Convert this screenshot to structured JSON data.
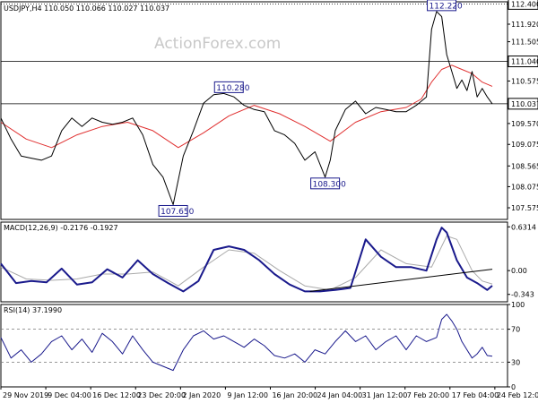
{
  "chart_data": [
    {
      "panel": "price",
      "type": "line",
      "header": "USDJPY,H4  110.050 110.066 110.027 110.037",
      "watermark": "ActionForex.com",
      "ylim": [
        107.3,
        112.45
      ],
      "ticks": [
        "112.400",
        "111.920",
        "111.505",
        "111.040",
        "110.575",
        "110.037",
        "109.570",
        "109.075",
        "108.565",
        "108.075",
        "107.575"
      ],
      "tick_values": [
        112.4,
        111.92,
        111.505,
        111.04,
        110.575,
        110.037,
        109.57,
        109.075,
        108.565,
        108.075,
        107.575
      ],
      "highlighted_levels": [
        "112.400",
        "111.040",
        "110.037"
      ],
      "annotations": [
        {
          "label": "112.220",
          "x": 0.87,
          "y": 112.22
        },
        {
          "label": "110.280",
          "x": 0.45,
          "y": 110.28
        },
        {
          "label": "108.300",
          "x": 0.64,
          "y": 108.3
        },
        {
          "label": "107.650",
          "x": 0.34,
          "y": 107.65
        }
      ],
      "series": [
        {
          "color": "#000000",
          "x": [
            0.0,
            0.02,
            0.04,
            0.06,
            0.08,
            0.1,
            0.12,
            0.14,
            0.16,
            0.18,
            0.2,
            0.22,
            0.24,
            0.26,
            0.28,
            0.3,
            0.32,
            0.34,
            0.36,
            0.38,
            0.4,
            0.42,
            0.44,
            0.46,
            0.48,
            0.5,
            0.52,
            0.54,
            0.56,
            0.58,
            0.6,
            0.62,
            0.64,
            0.65,
            0.66,
            0.68,
            0.7,
            0.72,
            0.74,
            0.76,
            0.78,
            0.8,
            0.82,
            0.84,
            0.85,
            0.86,
            0.87,
            0.88,
            0.89,
            0.9,
            0.91,
            0.92,
            0.93,
            0.94,
            0.95,
            0.96,
            0.97
          ],
          "values": [
            109.7,
            109.2,
            108.8,
            108.75,
            108.7,
            108.8,
            109.4,
            109.7,
            109.5,
            109.7,
            109.6,
            109.55,
            109.6,
            109.7,
            109.3,
            108.6,
            108.3,
            107.65,
            108.8,
            109.4,
            110.05,
            110.25,
            110.28,
            110.2,
            110.0,
            109.9,
            109.85,
            109.4,
            109.3,
            109.1,
            108.7,
            108.9,
            108.3,
            108.7,
            109.4,
            109.9,
            110.1,
            109.8,
            109.95,
            109.9,
            109.85,
            109.85,
            110.0,
            110.2,
            111.8,
            112.22,
            112.1,
            111.2,
            110.8,
            110.4,
            110.6,
            110.35,
            110.8,
            110.2,
            110.4,
            110.2,
            110.037
          ]
        },
        {
          "color": "#e03030",
          "x": [
            0.0,
            0.05,
            0.1,
            0.15,
            0.2,
            0.25,
            0.3,
            0.35,
            0.4,
            0.45,
            0.5,
            0.55,
            0.6,
            0.65,
            0.7,
            0.75,
            0.8,
            0.83,
            0.85,
            0.87,
            0.89,
            0.91,
            0.93,
            0.95,
            0.97
          ],
          "values": [
            109.6,
            109.2,
            109.0,
            109.3,
            109.5,
            109.6,
            109.4,
            109.0,
            109.35,
            109.75,
            110.0,
            109.8,
            109.5,
            109.15,
            109.6,
            109.85,
            109.95,
            110.15,
            110.55,
            110.85,
            110.95,
            110.85,
            110.75,
            110.55,
            110.45
          ]
        }
      ]
    },
    {
      "panel": "macd",
      "type": "line",
      "header": "MACD(12,26,9) -0.2176 -0.1927",
      "ylim": [
        -0.45,
        0.7
      ],
      "ticks": [
        "0.6314",
        "0.00",
        "-0.343"
      ],
      "tick_values": [
        0.6314,
        0.0,
        -0.343
      ],
      "series": [
        {
          "color": "#1a1a8c",
          "x": [
            0.0,
            0.03,
            0.06,
            0.09,
            0.12,
            0.15,
            0.18,
            0.21,
            0.24,
            0.27,
            0.3,
            0.33,
            0.36,
            0.39,
            0.42,
            0.45,
            0.48,
            0.51,
            0.54,
            0.57,
            0.6,
            0.63,
            0.66,
            0.69,
            0.72,
            0.75,
            0.78,
            0.81,
            0.84,
            0.86,
            0.87,
            0.88,
            0.9,
            0.92,
            0.94,
            0.96,
            0.97
          ],
          "values": [
            0.1,
            -0.18,
            -0.15,
            -0.17,
            0.03,
            -0.2,
            -0.17,
            0.02,
            -0.1,
            0.15,
            -0.05,
            -0.18,
            -0.3,
            -0.15,
            0.3,
            0.35,
            0.3,
            0.15,
            -0.05,
            -0.2,
            -0.3,
            -0.3,
            -0.28,
            -0.25,
            0.45,
            0.2,
            0.05,
            0.05,
            0.0,
            0.45,
            0.62,
            0.55,
            0.15,
            -0.1,
            -0.18,
            -0.28,
            -0.2176
          ]
        },
        {
          "color": "#aaaaaa",
          "x": [
            0.0,
            0.05,
            0.1,
            0.15,
            0.2,
            0.25,
            0.3,
            0.35,
            0.4,
            0.45,
            0.5,
            0.55,
            0.6,
            0.65,
            0.7,
            0.75,
            0.8,
            0.85,
            0.88,
            0.9,
            0.93,
            0.95,
            0.97
          ],
          "values": [
            0.05,
            -0.12,
            -0.14,
            -0.12,
            -0.05,
            -0.05,
            -0.02,
            -0.22,
            0.05,
            0.3,
            0.25,
            0.0,
            -0.22,
            -0.28,
            -0.1,
            0.3,
            0.1,
            0.05,
            0.5,
            0.45,
            0.0,
            -0.15,
            -0.1927
          ]
        }
      ],
      "trendline": {
        "x": [
          0.61,
          0.97
        ],
        "values": [
          -0.3,
          0.02
        ]
      }
    },
    {
      "panel": "rsi",
      "type": "line",
      "header": "RSI(14) 37.1990",
      "ylim": [
        0,
        100
      ],
      "ticks": [
        "100",
        "70",
        "30",
        "0"
      ],
      "tick_values": [
        100,
        70,
        30,
        0
      ],
      "series": [
        {
          "color": "#1a1a8c",
          "x": [
            0.0,
            0.02,
            0.04,
            0.06,
            0.08,
            0.1,
            0.12,
            0.14,
            0.16,
            0.18,
            0.2,
            0.22,
            0.24,
            0.26,
            0.28,
            0.3,
            0.32,
            0.34,
            0.36,
            0.38,
            0.4,
            0.42,
            0.44,
            0.46,
            0.48,
            0.5,
            0.52,
            0.54,
            0.56,
            0.58,
            0.6,
            0.62,
            0.64,
            0.66,
            0.68,
            0.7,
            0.72,
            0.74,
            0.76,
            0.78,
            0.8,
            0.82,
            0.84,
            0.86,
            0.87,
            0.88,
            0.89,
            0.9,
            0.91,
            0.92,
            0.93,
            0.94,
            0.95,
            0.96,
            0.97
          ],
          "values": [
            60,
            35,
            45,
            30,
            40,
            55,
            62,
            45,
            58,
            42,
            65,
            55,
            40,
            62,
            45,
            30,
            25,
            20,
            45,
            62,
            68,
            58,
            62,
            55,
            48,
            58,
            50,
            38,
            35,
            40,
            30,
            45,
            40,
            55,
            68,
            55,
            62,
            45,
            55,
            62,
            45,
            62,
            55,
            60,
            82,
            88,
            80,
            70,
            55,
            45,
            35,
            40,
            48,
            38,
            37.2
          ]
        }
      ]
    },
    {
      "panel": "x-axis",
      "type": "table",
      "labels": [
        "29 Nov 2019",
        "9 Dec 04:00",
        "16 Dec 12:00",
        "23 Dec 20:00",
        "2 Jan 2020",
        "9 Jan 12:00",
        "16 Jan 20:00",
        "24 Jan 04:00",
        "31 Jan 12:00",
        "7 Feb 20:00",
        "17 Feb 04:00",
        "24 Feb 12:00"
      ]
    }
  ]
}
